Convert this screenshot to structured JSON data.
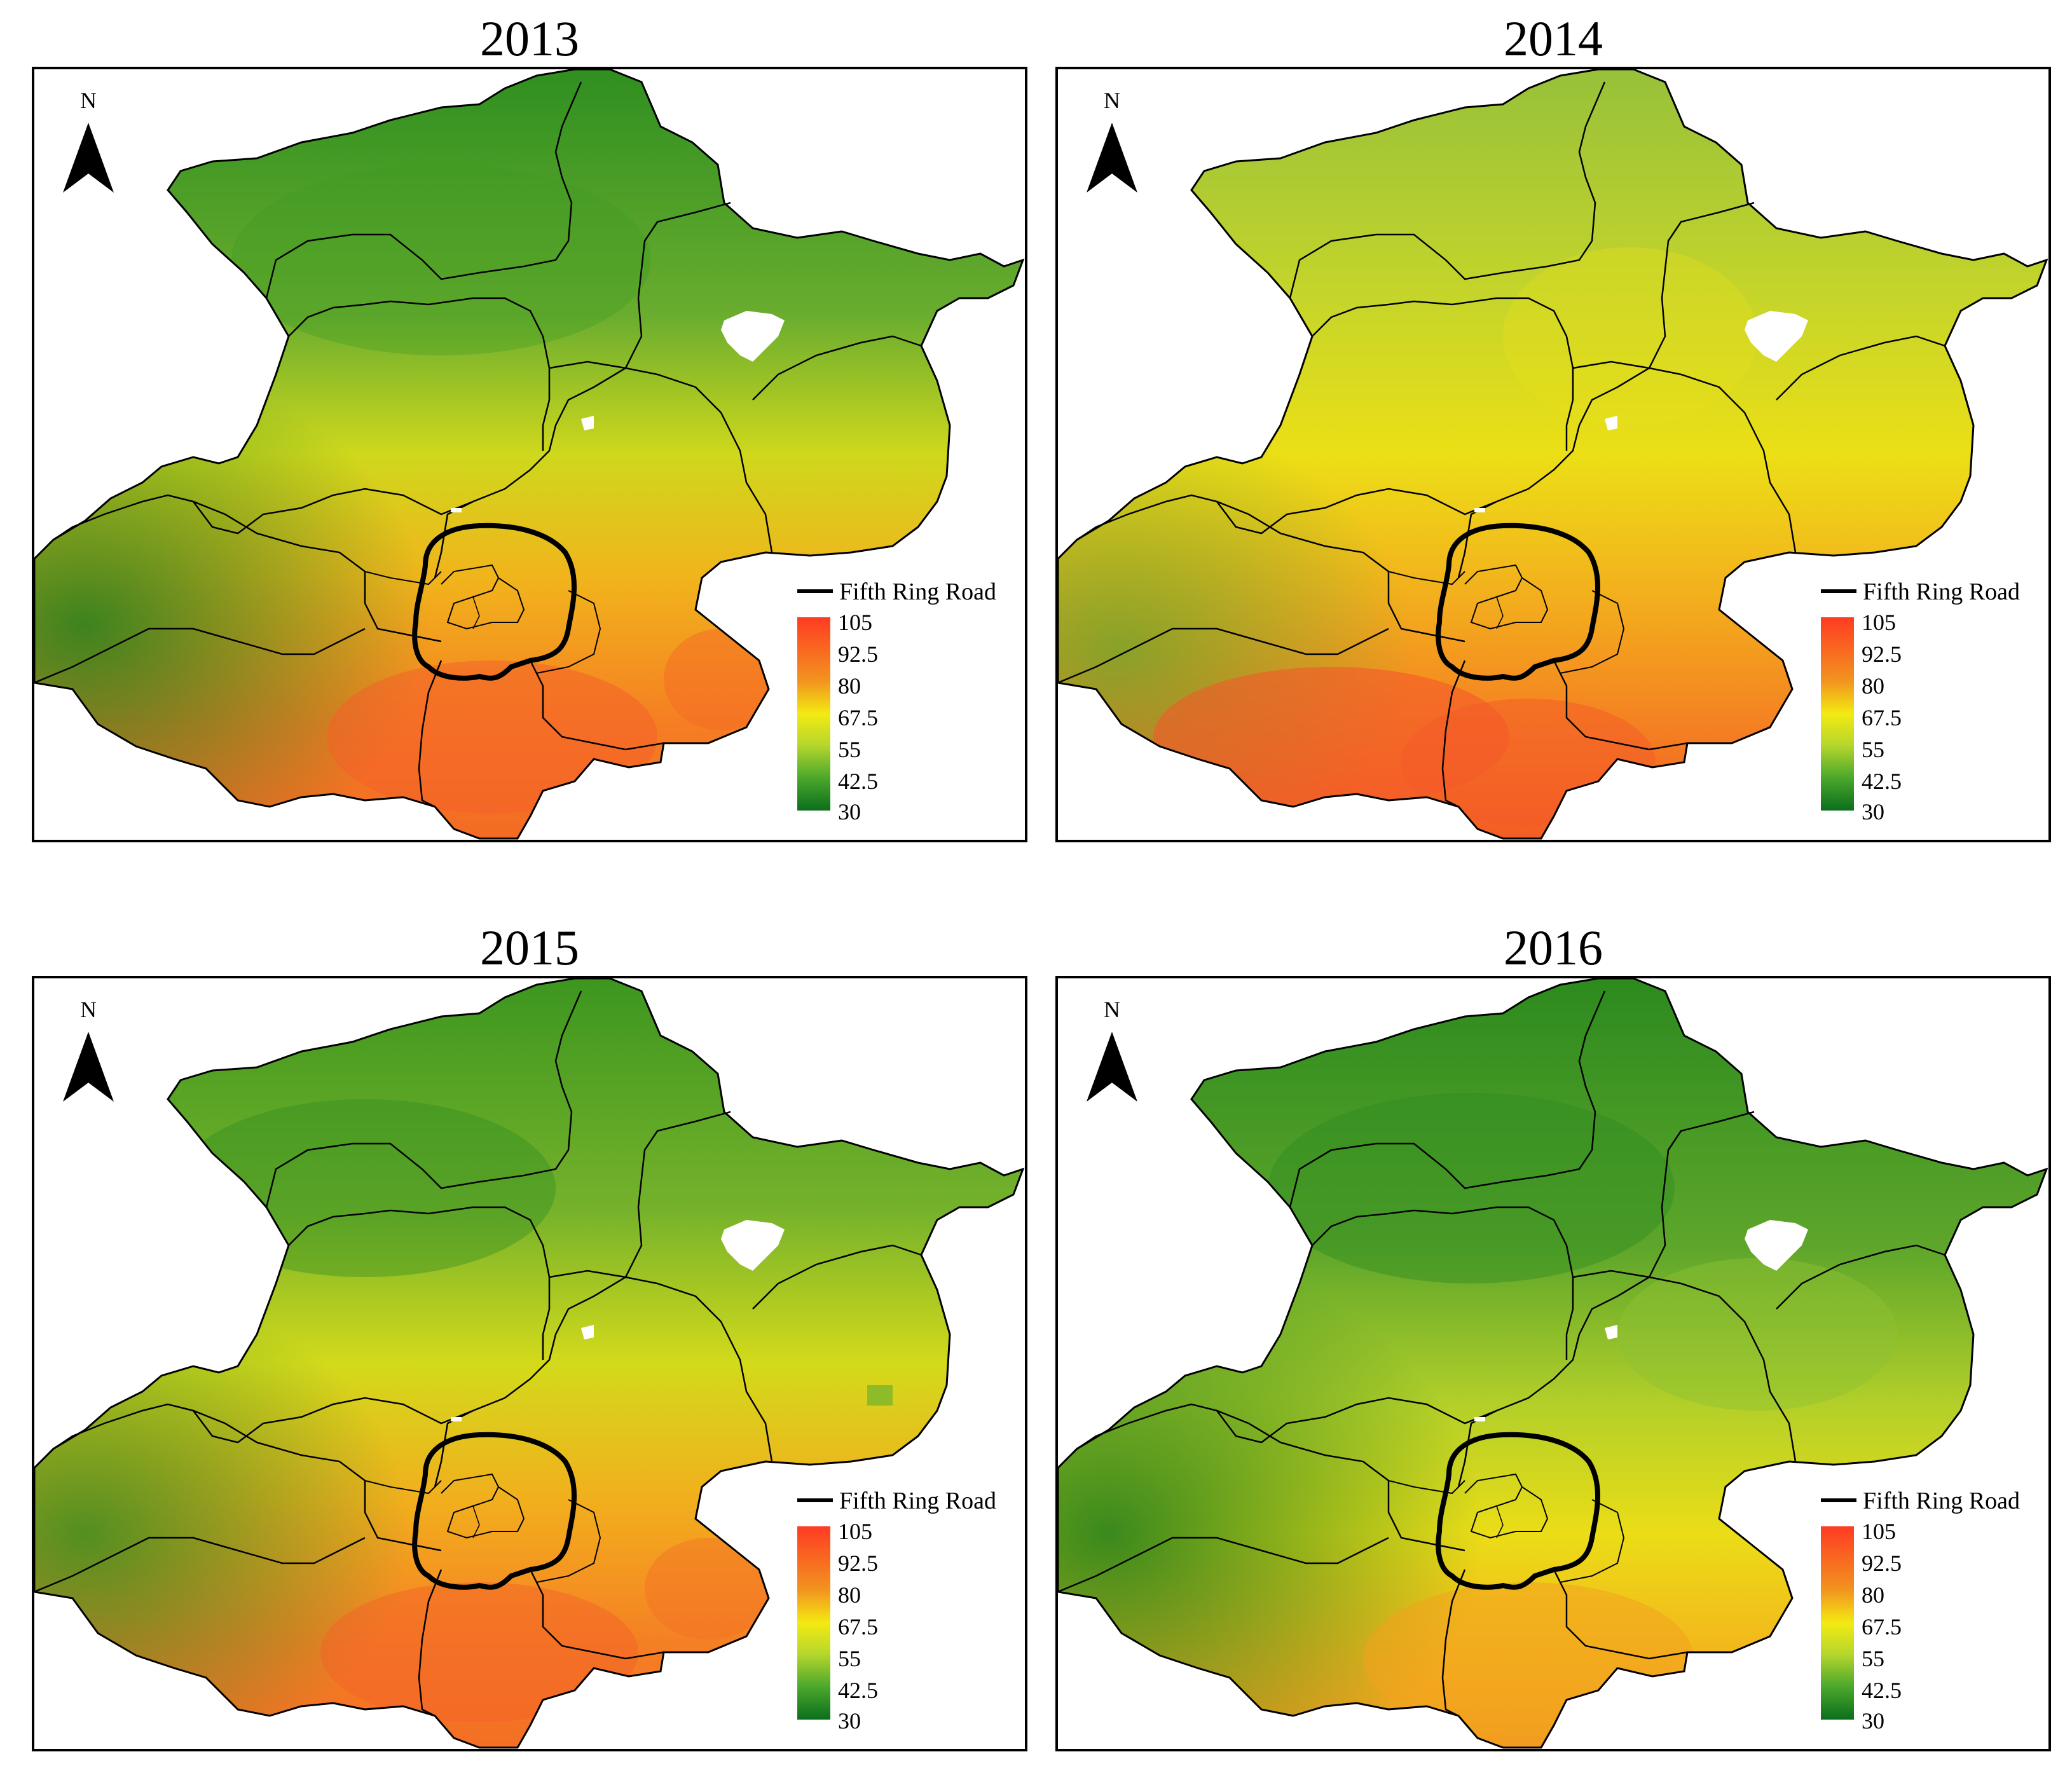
{
  "panels": [
    {
      "year": "2013",
      "scheme": "y2013"
    },
    {
      "year": "2014",
      "scheme": "y2014"
    },
    {
      "year": "2015",
      "scheme": "y2015"
    },
    {
      "year": "2016",
      "scheme": "y2016"
    }
  ],
  "north_label": "N",
  "legend": {
    "road_label": "Fifth Ring Road",
    "ticks": [
      "105",
      "92.5",
      "80",
      "67.5",
      "55",
      "42.5",
      "30"
    ],
    "ramp_colors": [
      "#ff3b22",
      "#f2941f",
      "#f3ea12",
      "#b6d72c",
      "#4ca82b",
      "#0b6e1c"
    ]
  }
}
